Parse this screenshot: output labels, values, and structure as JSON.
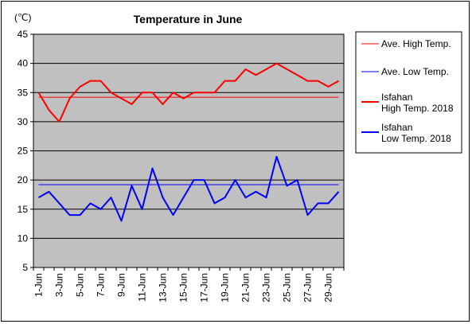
{
  "chart_data": {
    "type": "line",
    "title": "Temperature in June",
    "unit_label": "(℃)",
    "ylim": [
      5,
      45
    ],
    "yticks": [
      5,
      10,
      15,
      20,
      25,
      30,
      35,
      40,
      45
    ],
    "plot_background": "#c0c0c0",
    "grid": true,
    "legend_position": "right",
    "x_tick_labels": [
      "1-Jun",
      "3-Jun",
      "5-Jun",
      "7-Jun",
      "9-Jun",
      "11-Jun",
      "13-Jun",
      "15-Jun",
      "17-Jun",
      "19-Jun",
      "21-Jun",
      "23-Jun",
      "25-Jun",
      "27-Jun",
      "29-Jun"
    ],
    "days": [
      1,
      2,
      3,
      4,
      5,
      6,
      7,
      8,
      9,
      10,
      11,
      12,
      13,
      14,
      15,
      16,
      17,
      18,
      19,
      20,
      21,
      22,
      23,
      24,
      25,
      26,
      27,
      28,
      29,
      30
    ],
    "series": [
      {
        "name": "Ave. High Temp.",
        "color": "#ff0000",
        "width": 1,
        "constant": 34.2
      },
      {
        "name": "Ave. Low Temp.",
        "color": "#0000ff",
        "width": 1,
        "constant": 19.2
      },
      {
        "name": "Isfahan\nHigh Temp. 2018",
        "color": "#ff0000",
        "width": 2,
        "values": [
          35,
          32,
          30,
          34,
          36,
          37,
          37,
          35,
          34,
          33,
          35,
          35,
          33,
          35,
          34,
          35,
          35,
          35,
          37,
          37,
          39,
          38,
          39,
          40,
          39,
          38,
          37,
          37,
          36,
          37
        ]
      },
      {
        "name": "Isfahan\nLow Temp. 2018",
        "color": "#0000ff",
        "width": 2,
        "values": [
          17,
          18,
          16,
          14,
          14,
          16,
          15,
          17,
          13,
          19,
          15,
          22,
          17,
          14,
          17,
          20,
          20,
          16,
          17,
          20,
          17,
          18,
          17,
          24,
          19,
          20,
          14,
          16,
          16,
          18
        ]
      }
    ]
  }
}
